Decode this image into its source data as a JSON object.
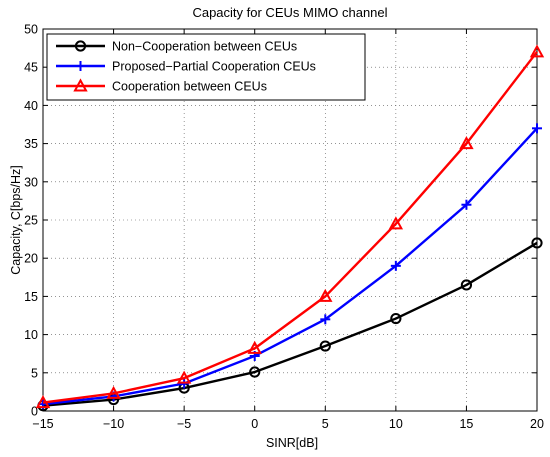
{
  "chart_data": {
    "type": "line",
    "title": "Capacity  for CEUs  MIMO channel",
    "xlabel": "SINR[dB]",
    "ylabel": "Capacity, C[bps/Hz]",
    "xlim": [
      -15,
      20
    ],
    "ylim": [
      0,
      50
    ],
    "xticks": [
      "-15",
      "-10",
      "-5",
      "0",
      "5",
      "10",
      "15",
      "20"
    ],
    "yticks": [
      "0",
      "5",
      "10",
      "15",
      "20",
      "25",
      "30",
      "35",
      "40",
      "45",
      "50"
    ],
    "grid": true,
    "legend_position": "top-left",
    "x": [
      -15,
      -10,
      -5,
      0,
      5,
      10,
      15,
      20
    ],
    "series": [
      {
        "name": "Non−Cooperation between CEUs",
        "color": "#000000",
        "marker": "circle",
        "values": [
          0.7,
          1.5,
          3.0,
          5.1,
          8.5,
          12.1,
          16.5,
          22.0
        ]
      },
      {
        "name": "Proposed−Partial Cooperation CEUs",
        "color": "#0000ff",
        "marker": "plus",
        "values": [
          0.9,
          1.9,
          3.6,
          7.2,
          12.0,
          19.0,
          27.0,
          37.0
        ]
      },
      {
        "name": "Cooperation between CEUs",
        "color": "#ff0000",
        "marker": "triangle",
        "values": [
          1.1,
          2.3,
          4.3,
          8.2,
          15.0,
          24.5,
          35.0,
          47.0
        ]
      }
    ]
  }
}
